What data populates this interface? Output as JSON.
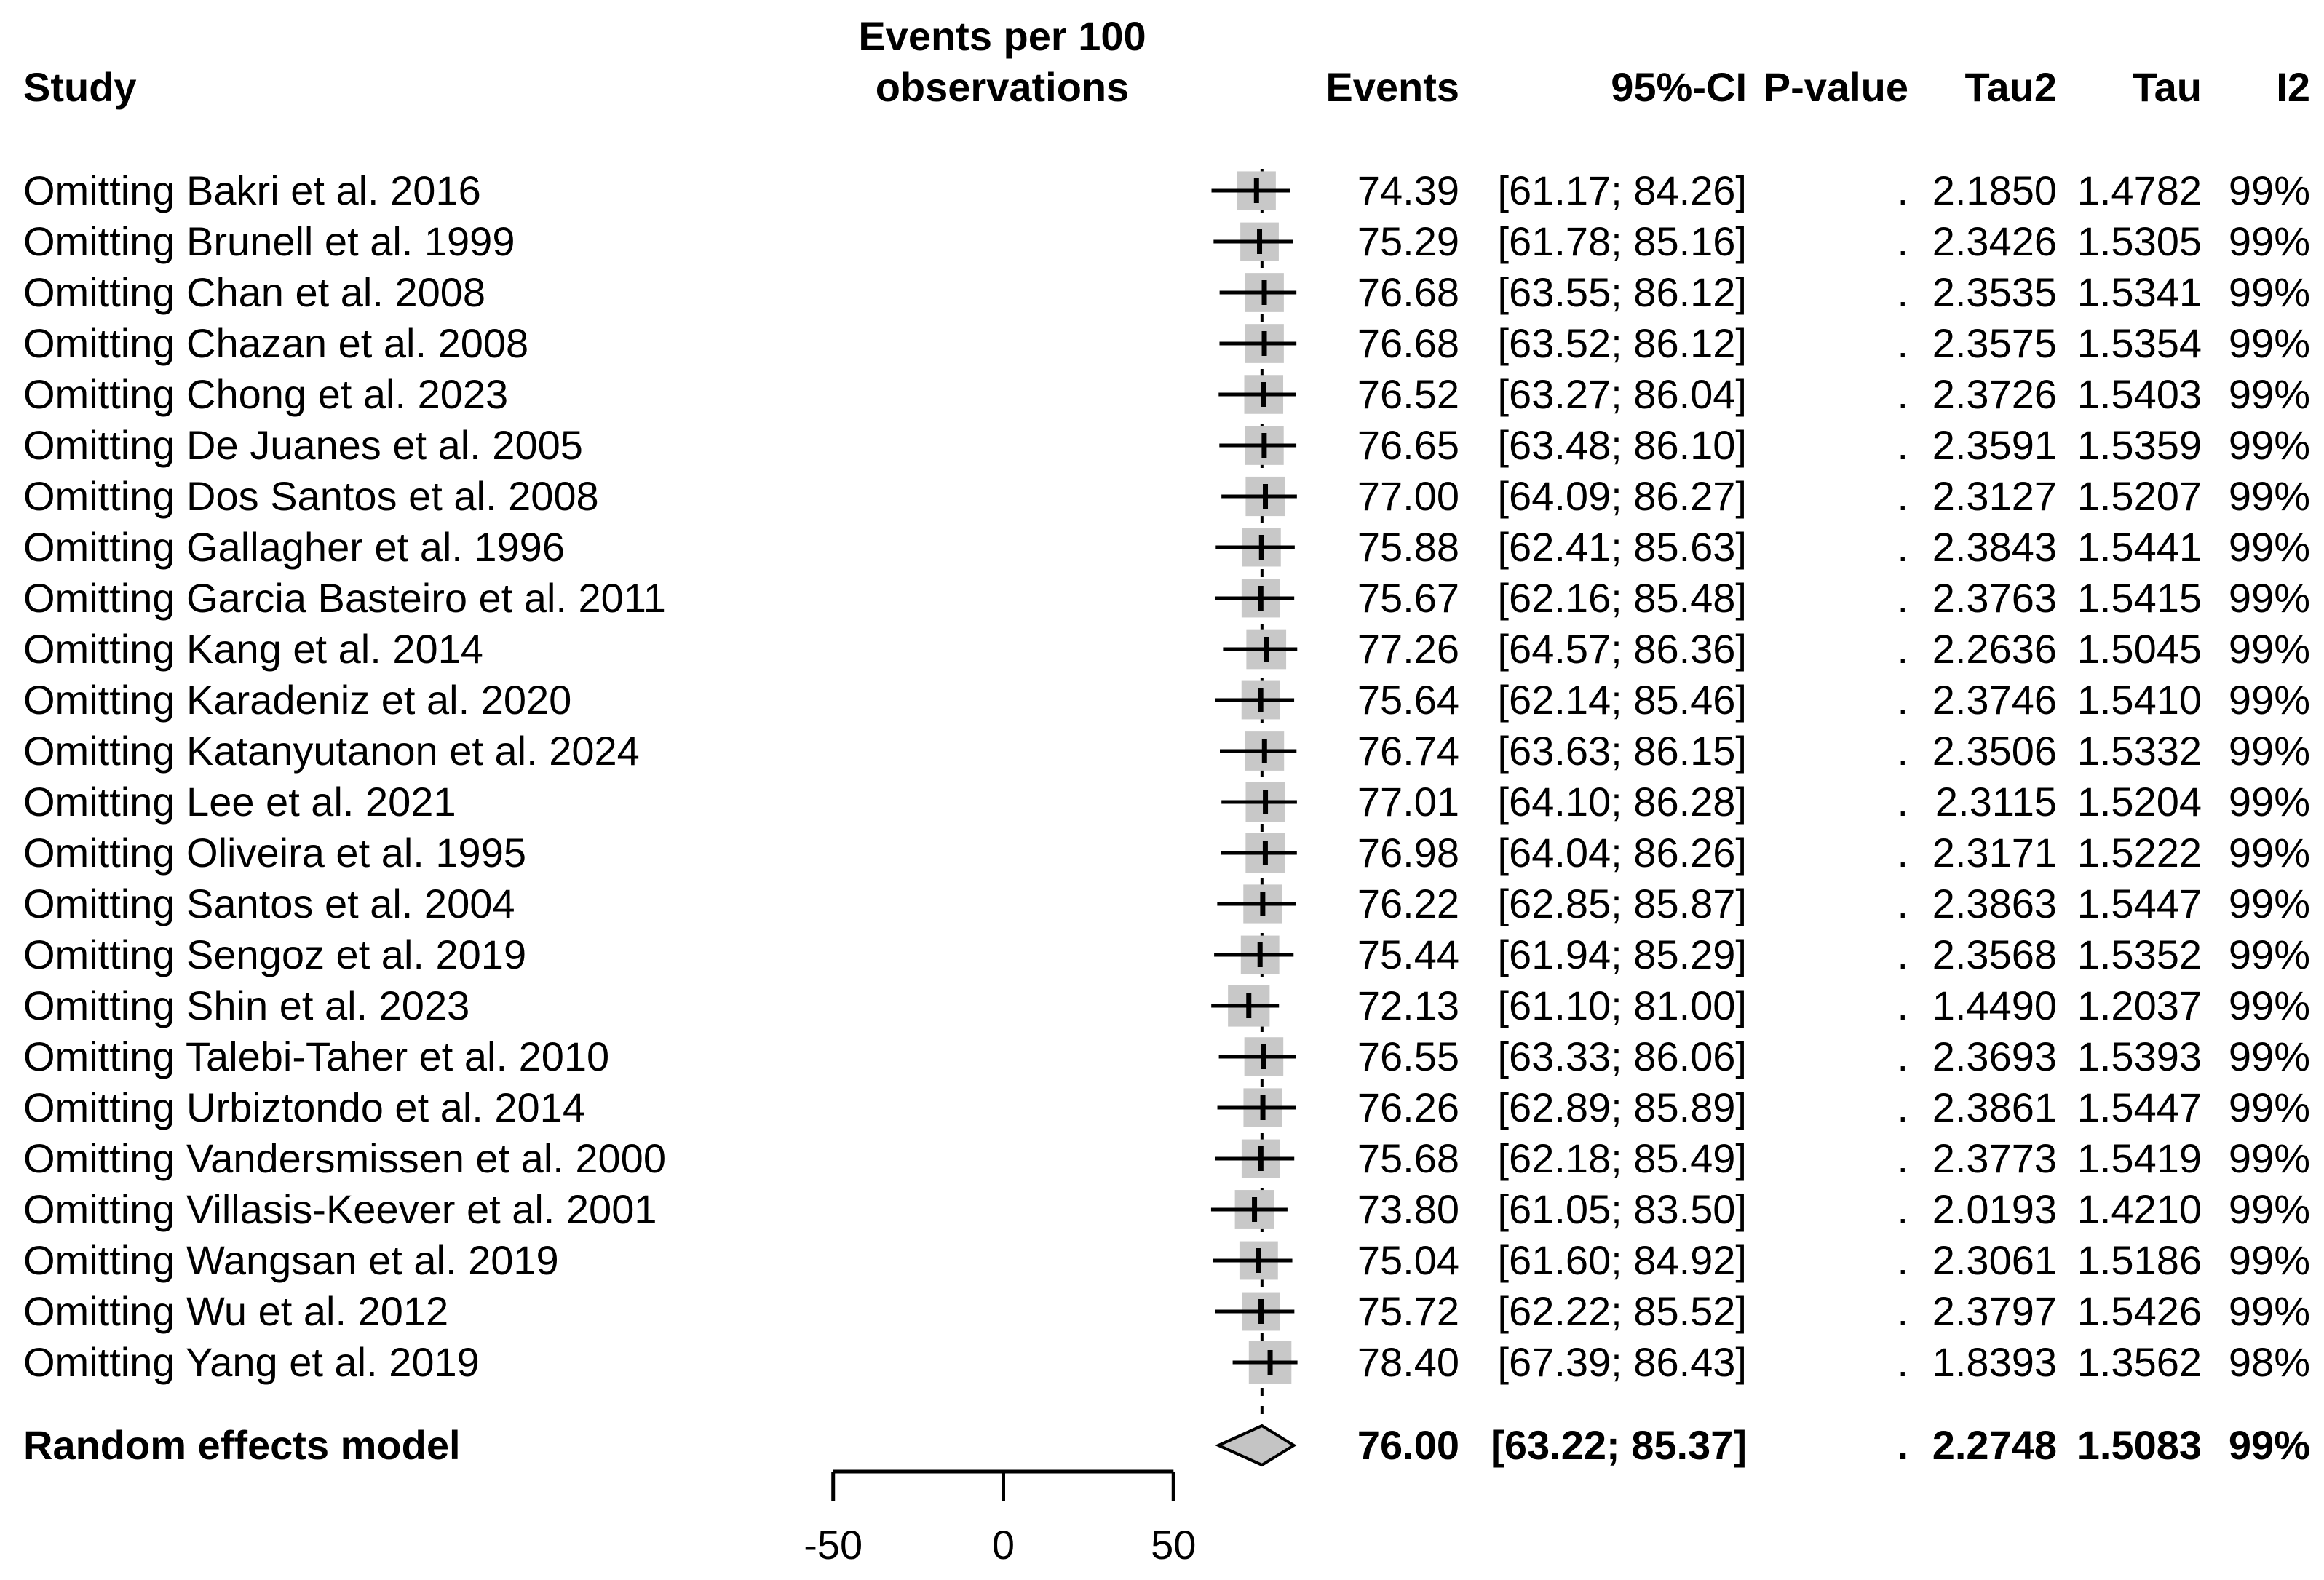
{
  "header": {
    "study": "Study",
    "plot_line1": "Events per 100",
    "plot_line2": "observations",
    "events": "Events",
    "ci": "95%-CI",
    "pvalue": "P-value",
    "tau2": "Tau2",
    "tau": "Tau",
    "i2": "I2"
  },
  "chart_data": {
    "type": "forest",
    "title": "Events per 100 observations",
    "columns": [
      "Study",
      "Events",
      "95%-CI",
      "P-value",
      "Tau2",
      "Tau",
      "I2"
    ],
    "x_axis": {
      "ticks": [
        -50,
        0,
        50
      ],
      "tick_labels": [
        "-50",
        "0",
        "50"
      ]
    },
    "reference_line_value": 76.0,
    "colors": {
      "square": "#c8c8c8",
      "diamond": "#c4c4c4",
      "line": "#000000"
    },
    "studies": [
      {
        "label": "Omitting Bakri et al. 2016",
        "est": 74.39,
        "lo": 61.17,
        "hi": 84.26,
        "events_text": "74.39",
        "ci_text": "[61.17; 84.26]",
        "pvalue": ".",
        "tau2": "2.1850",
        "tau": "1.4782",
        "i2": "99%"
      },
      {
        "label": "Omitting Brunell et al. 1999",
        "est": 75.29,
        "lo": 61.78,
        "hi": 85.16,
        "events_text": "75.29",
        "ci_text": "[61.78; 85.16]",
        "pvalue": ".",
        "tau2": "2.3426",
        "tau": "1.5305",
        "i2": "99%"
      },
      {
        "label": "Omitting Chan et al. 2008",
        "est": 76.68,
        "lo": 63.55,
        "hi": 86.12,
        "events_text": "76.68",
        "ci_text": "[63.55; 86.12]",
        "pvalue": ".",
        "tau2": "2.3535",
        "tau": "1.5341",
        "i2": "99%"
      },
      {
        "label": "Omitting Chazan et al. 2008",
        "est": 76.68,
        "lo": 63.52,
        "hi": 86.12,
        "events_text": "76.68",
        "ci_text": "[63.52; 86.12]",
        "pvalue": ".",
        "tau2": "2.3575",
        "tau": "1.5354",
        "i2": "99%"
      },
      {
        "label": "Omitting Chong et al. 2023",
        "est": 76.52,
        "lo": 63.27,
        "hi": 86.04,
        "events_text": "76.52",
        "ci_text": "[63.27; 86.04]",
        "pvalue": ".",
        "tau2": "2.3726",
        "tau": "1.5403",
        "i2": "99%"
      },
      {
        "label": "Omitting De Juanes et al. 2005",
        "est": 76.65,
        "lo": 63.48,
        "hi": 86.1,
        "events_text": "76.65",
        "ci_text": "[63.48; 86.10]",
        "pvalue": ".",
        "tau2": "2.3591",
        "tau": "1.5359",
        "i2": "99%"
      },
      {
        "label": "Omitting Dos Santos et al. 2008",
        "est": 77.0,
        "lo": 64.09,
        "hi": 86.27,
        "events_text": "77.00",
        "ci_text": "[64.09; 86.27]",
        "pvalue": ".",
        "tau2": "2.3127",
        "tau": "1.5207",
        "i2": "99%"
      },
      {
        "label": "Omitting Gallagher et al. 1996",
        "est": 75.88,
        "lo": 62.41,
        "hi": 85.63,
        "events_text": "75.88",
        "ci_text": "[62.41; 85.63]",
        "pvalue": ".",
        "tau2": "2.3843",
        "tau": "1.5441",
        "i2": "99%"
      },
      {
        "label": "Omitting Garcia Basteiro et al. 2011",
        "est": 75.67,
        "lo": 62.16,
        "hi": 85.48,
        "events_text": "75.67",
        "ci_text": "[62.16; 85.48]",
        "pvalue": ".",
        "tau2": "2.3763",
        "tau": "1.5415",
        "i2": "99%"
      },
      {
        "label": "Omitting Kang et al. 2014",
        "est": 77.26,
        "lo": 64.57,
        "hi": 86.36,
        "events_text": "77.26",
        "ci_text": "[64.57; 86.36]",
        "pvalue": ".",
        "tau2": "2.2636",
        "tau": "1.5045",
        "i2": "99%"
      },
      {
        "label": "Omitting Karadeniz et al. 2020",
        "est": 75.64,
        "lo": 62.14,
        "hi": 85.46,
        "events_text": "75.64",
        "ci_text": "[62.14; 85.46]",
        "pvalue": ".",
        "tau2": "2.3746",
        "tau": "1.5410",
        "i2": "99%"
      },
      {
        "label": "Omitting Katanyutanon et al. 2024",
        "est": 76.74,
        "lo": 63.63,
        "hi": 86.15,
        "events_text": "76.74",
        "ci_text": "[63.63; 86.15]",
        "pvalue": ".",
        "tau2": "2.3506",
        "tau": "1.5332",
        "i2": "99%"
      },
      {
        "label": "Omitting Lee et al. 2021",
        "est": 77.01,
        "lo": 64.1,
        "hi": 86.28,
        "events_text": "77.01",
        "ci_text": "[64.10; 86.28]",
        "pvalue": ".",
        "tau2": "2.3115",
        "tau": "1.5204",
        "i2": "99%"
      },
      {
        "label": "Omitting Oliveira et al. 1995",
        "est": 76.98,
        "lo": 64.04,
        "hi": 86.26,
        "events_text": "76.98",
        "ci_text": "[64.04; 86.26]",
        "pvalue": ".",
        "tau2": "2.3171",
        "tau": "1.5222",
        "i2": "99%"
      },
      {
        "label": "Omitting Santos et al. 2004",
        "est": 76.22,
        "lo": 62.85,
        "hi": 85.87,
        "events_text": "76.22",
        "ci_text": "[62.85; 85.87]",
        "pvalue": ".",
        "tau2": "2.3863",
        "tau": "1.5447",
        "i2": "99%"
      },
      {
        "label": "Omitting Sengoz et al. 2019",
        "est": 75.44,
        "lo": 61.94,
        "hi": 85.29,
        "events_text": "75.44",
        "ci_text": "[61.94; 85.29]",
        "pvalue": ".",
        "tau2": "2.3568",
        "tau": "1.5352",
        "i2": "99%"
      },
      {
        "label": "Omitting Shin et al. 2023",
        "est": 72.13,
        "lo": 61.1,
        "hi": 81.0,
        "events_text": "72.13",
        "ci_text": "[61.10; 81.00]",
        "pvalue": ".",
        "tau2": "1.4490",
        "tau": "1.2037",
        "i2": "99%"
      },
      {
        "label": "Omitting Talebi-Taher et al. 2010",
        "est": 76.55,
        "lo": 63.33,
        "hi": 86.06,
        "events_text": "76.55",
        "ci_text": "[63.33; 86.06]",
        "pvalue": ".",
        "tau2": "2.3693",
        "tau": "1.5393",
        "i2": "99%"
      },
      {
        "label": "Omitting Urbiztondo et al. 2014",
        "est": 76.26,
        "lo": 62.89,
        "hi": 85.89,
        "events_text": "76.26",
        "ci_text": "[62.89; 85.89]",
        "pvalue": ".",
        "tau2": "2.3861",
        "tau": "1.5447",
        "i2": "99%"
      },
      {
        "label": "Omitting Vandersmissen et al. 2000",
        "est": 75.68,
        "lo": 62.18,
        "hi": 85.49,
        "events_text": "75.68",
        "ci_text": "[62.18; 85.49]",
        "pvalue": ".",
        "tau2": "2.3773",
        "tau": "1.5419",
        "i2": "99%"
      },
      {
        "label": "Omitting Villasis-Keever et al. 2001",
        "est": 73.8,
        "lo": 61.05,
        "hi": 83.5,
        "events_text": "73.80",
        "ci_text": "[61.05; 83.50]",
        "pvalue": ".",
        "tau2": "2.0193",
        "tau": "1.4210",
        "i2": "99%"
      },
      {
        "label": "Omitting Wangsan et al. 2019",
        "est": 75.04,
        "lo": 61.6,
        "hi": 84.92,
        "events_text": "75.04",
        "ci_text": "[61.60; 84.92]",
        "pvalue": ".",
        "tau2": "2.3061",
        "tau": "1.5186",
        "i2": "99%"
      },
      {
        "label": "Omitting Wu et al. 2012",
        "est": 75.72,
        "lo": 62.22,
        "hi": 85.52,
        "events_text": "75.72",
        "ci_text": "[62.22; 85.52]",
        "pvalue": ".",
        "tau2": "2.3797",
        "tau": "1.5426",
        "i2": "99%"
      },
      {
        "label": "Omitting Yang et al. 2019",
        "est": 78.4,
        "lo": 67.39,
        "hi": 86.43,
        "events_text": "78.40",
        "ci_text": "[67.39; 86.43]",
        "pvalue": ".",
        "tau2": "1.8393",
        "tau": "1.3562",
        "i2": "98%"
      }
    ],
    "summary": {
      "label": "Random effects model",
      "est": 76.0,
      "lo": 63.22,
      "hi": 85.37,
      "events_text": "76.00",
      "ci_text": "[63.22; 85.37]",
      "pvalue": ".",
      "tau2": "2.2748",
      "tau": "1.5083",
      "i2": "99%"
    }
  }
}
